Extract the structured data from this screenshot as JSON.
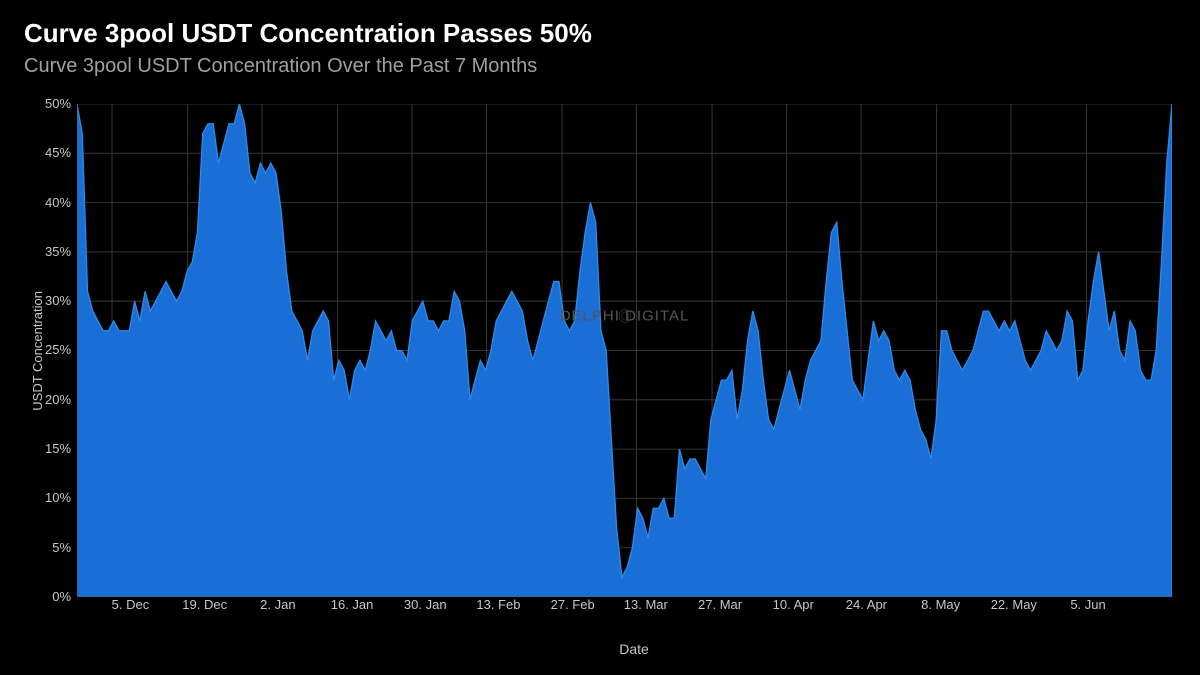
{
  "header": {
    "title": "Curve 3pool USDT Concentration Passes 50%",
    "subtitle": "Curve 3pool USDT Concentration Over the Past 7 Months"
  },
  "chart": {
    "type": "area",
    "background_color": "#000000",
    "grid_color": "#333333",
    "axis_line_color": "#555555",
    "series_fill": "#1a6fd6",
    "series_stroke": "#2d8be8",
    "tick_color": "#c7c7c7",
    "title_color": "#ffffff",
    "subtitle_color": "#a0a0a0",
    "title_fontsize": 26,
    "subtitle_fontsize": 20,
    "tick_fontsize": 13,
    "label_fontsize": 14,
    "ylabel": "USDT Concentration",
    "xlabel": "Date",
    "ylim": [
      0,
      50
    ],
    "ytick_step": 5,
    "yticks": [
      "50%",
      "45%",
      "40%",
      "35%",
      "30%",
      "25%",
      "20%",
      "15%",
      "10%",
      "5%",
      "0%"
    ],
    "xticks": [
      "5. Dec",
      "19. Dec",
      "2. Jan",
      "16. Jan",
      "30. Jan",
      "13. Feb",
      "27. Feb",
      "13. Mar",
      "27. Mar",
      "10. Apr",
      "24. Apr",
      "8. May",
      "22. May",
      "5. Jun"
    ],
    "xtick_positions_pct": [
      3.2,
      10.1,
      16.9,
      23.8,
      30.6,
      37.4,
      44.3,
      51.1,
      58.0,
      64.8,
      71.6,
      78.5,
      85.3,
      92.2
    ],
    "watermark": "DELPHI DIGITAL",
    "values": [
      50,
      47,
      31,
      29,
      28,
      27,
      27,
      28,
      27,
      27,
      27,
      30,
      28,
      31,
      29,
      30,
      31,
      32,
      31,
      30,
      31,
      33,
      34,
      37,
      47,
      48,
      48,
      44,
      46,
      48,
      48,
      50,
      48,
      43,
      42,
      44,
      43,
      44,
      43,
      39,
      33,
      29,
      28,
      27,
      24,
      27,
      28,
      29,
      28,
      22,
      24,
      23,
      20,
      23,
      24,
      23,
      25,
      28,
      27,
      26,
      27,
      25,
      25,
      24,
      28,
      29,
      30,
      28,
      28,
      27,
      28,
      28,
      31,
      30,
      27,
      20,
      22,
      24,
      23,
      25,
      28,
      29,
      30,
      31,
      30,
      29,
      26,
      24,
      26,
      28,
      30,
      32,
      32,
      28,
      27,
      28,
      33,
      37,
      40,
      38,
      27,
      25,
      16,
      7,
      2,
      3,
      5,
      9,
      8,
      6,
      9,
      9,
      10,
      8,
      8,
      15,
      13,
      14,
      14,
      13,
      12,
      18,
      20,
      22,
      22,
      23,
      18,
      21,
      26,
      29,
      27,
      22,
      18,
      17,
      19,
      21,
      23,
      21,
      19,
      22,
      24,
      25,
      26,
      32,
      37,
      38,
      32,
      27,
      22,
      21,
      20,
      24,
      28,
      26,
      27,
      26,
      23,
      22,
      23,
      22,
      19,
      17,
      16,
      14,
      18,
      27,
      27,
      25,
      24,
      23,
      24,
      25,
      27,
      29,
      29,
      28,
      27,
      28,
      27,
      28,
      26,
      24,
      23,
      24,
      25,
      27,
      26,
      25,
      26,
      29,
      28,
      22,
      23,
      28,
      32,
      35,
      31,
      27,
      29,
      25,
      24,
      28,
      27,
      23,
      22,
      22,
      25,
      34,
      44,
      50
    ]
  }
}
